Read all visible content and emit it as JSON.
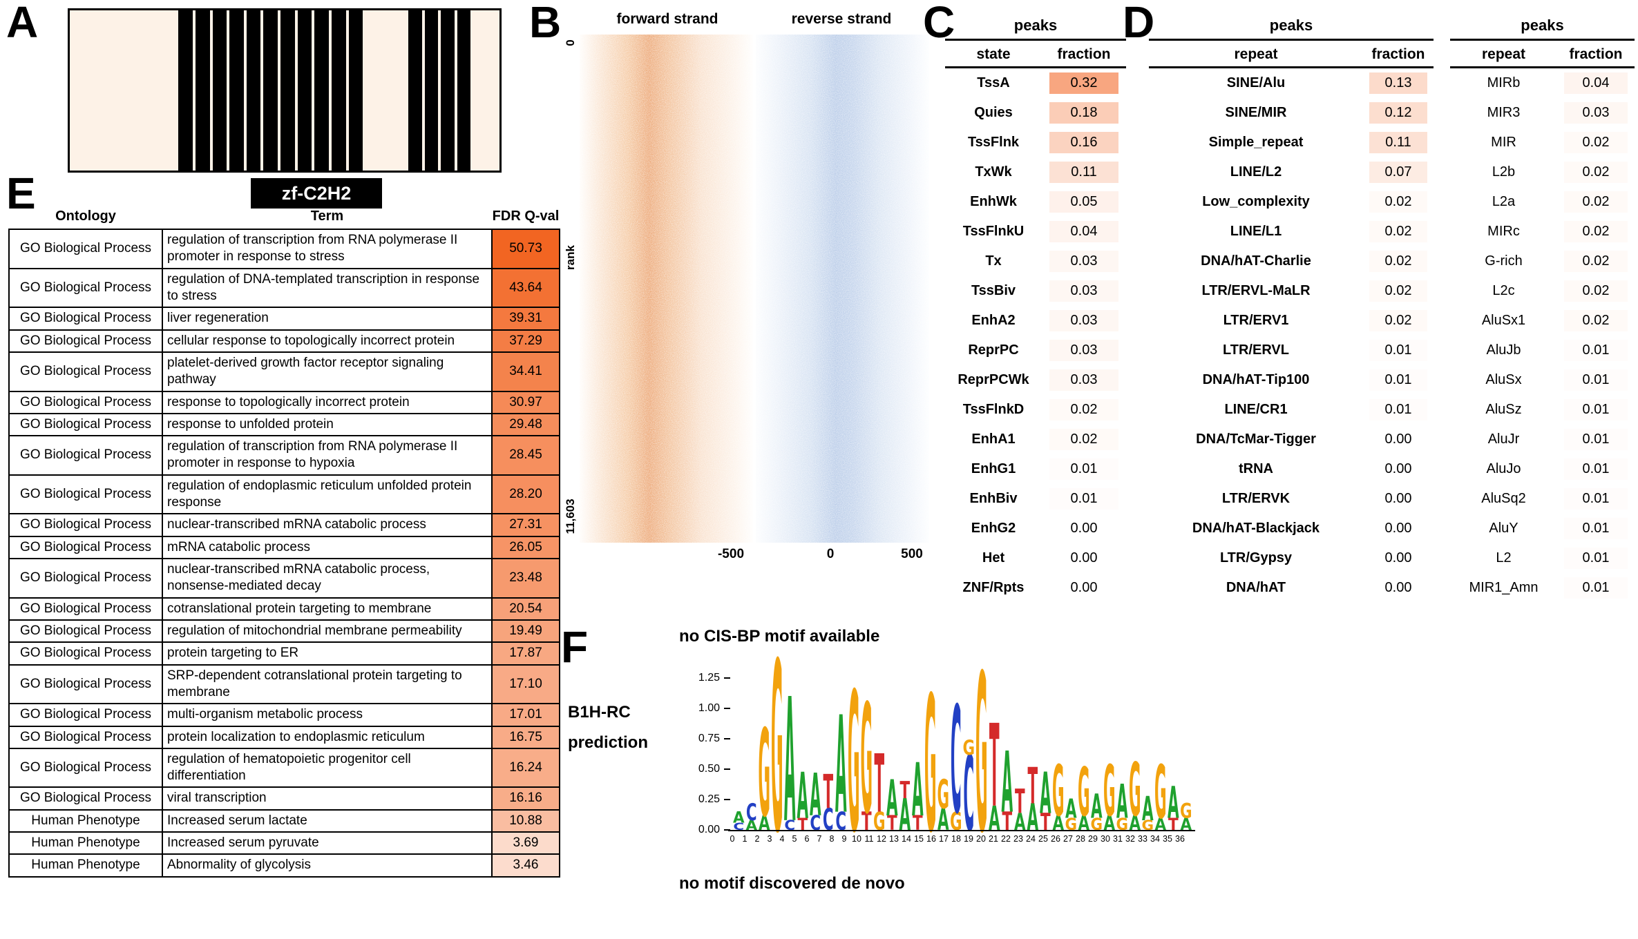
{
  "figure": {
    "panel_labels": {
      "a": "A",
      "b": "B",
      "c": "C",
      "d": "D",
      "e": "E",
      "f": "F"
    }
  },
  "colors": {
    "accent_orange": "#f26522",
    "cream": "#fdf2e7",
    "logo_A": "#1fa12e",
    "logo_C": "#2240c4",
    "logo_G": "#f2a20d",
    "logo_T": "#d42a2a"
  },
  "panel_a": {
    "domain_label": "zf-C2H2",
    "segments": [
      {
        "type": "linker",
        "width_pct": 25.3
      },
      {
        "type": "fingers",
        "width_pct": 42.9,
        "count": 11
      },
      {
        "type": "linker",
        "width_pct": 10.6
      },
      {
        "type": "fingers",
        "width_pct": 14.5,
        "count": 4
      },
      {
        "type": "linker",
        "width_pct": 6.7
      }
    ]
  },
  "panel_b": {
    "forward_label": "forward strand",
    "reverse_label": "reverse strand",
    "rank_top": "0",
    "rank_label": "rank",
    "rank_bottom": "11,603",
    "x_ticks": [
      "-500",
      "0",
      "500"
    ]
  },
  "panel_c": {
    "title": "peaks",
    "col1": "state",
    "col2": "fraction",
    "rows": [
      [
        "TssA",
        "0.32"
      ],
      [
        "Quies",
        "0.18"
      ],
      [
        "TssFlnk",
        "0.16"
      ],
      [
        "TxWk",
        "0.11"
      ],
      [
        "EnhWk",
        "0.05"
      ],
      [
        "TssFlnkU",
        "0.04"
      ],
      [
        "Tx",
        "0.03"
      ],
      [
        "TssBiv",
        "0.03"
      ],
      [
        "EnhA2",
        "0.03"
      ],
      [
        "ReprPC",
        "0.03"
      ],
      [
        "ReprPCWk",
        "0.03"
      ],
      [
        "TssFlnkD",
        "0.02"
      ],
      [
        "EnhA1",
        "0.02"
      ],
      [
        "EnhG1",
        "0.01"
      ],
      [
        "EnhBiv",
        "0.01"
      ],
      [
        "EnhG2",
        "0.00"
      ],
      [
        "Het",
        "0.00"
      ],
      [
        "ZNF/Rpts",
        "0.00"
      ]
    ]
  },
  "panel_d": {
    "table1": {
      "title": "peaks",
      "col1": "repeat",
      "col2": "fraction",
      "rows": [
        [
          "SINE/Alu",
          "0.13"
        ],
        [
          "SINE/MIR",
          "0.12"
        ],
        [
          "Simple_repeat",
          "0.11"
        ],
        [
          "LINE/L2",
          "0.07"
        ],
        [
          "Low_complexity",
          "0.02"
        ],
        [
          "LINE/L1",
          "0.02"
        ],
        [
          "DNA/hAT-Charlie",
          "0.02"
        ],
        [
          "LTR/ERVL-MaLR",
          "0.02"
        ],
        [
          "LTR/ERV1",
          "0.02"
        ],
        [
          "LTR/ERVL",
          "0.01"
        ],
        [
          "DNA/hAT-Tip100",
          "0.01"
        ],
        [
          "LINE/CR1",
          "0.01"
        ],
        [
          "DNA/TcMar-Tigger",
          "0.00"
        ],
        [
          "tRNA",
          "0.00"
        ],
        [
          "LTR/ERVK",
          "0.00"
        ],
        [
          "DNA/hAT-Blackjack",
          "0.00"
        ],
        [
          "LTR/Gypsy",
          "0.00"
        ],
        [
          "DNA/hAT",
          "0.00"
        ]
      ]
    },
    "table2": {
      "title": "peaks",
      "col1": "repeat",
      "col2": "fraction",
      "rows": [
        [
          "MIRb",
          "0.04"
        ],
        [
          "MIR3",
          "0.03"
        ],
        [
          "MIR",
          "0.02"
        ],
        [
          "L2b",
          "0.02"
        ],
        [
          "L2a",
          "0.02"
        ],
        [
          "MIRc",
          "0.02"
        ],
        [
          "G-rich",
          "0.02"
        ],
        [
          "L2c",
          "0.02"
        ],
        [
          "AluSx1",
          "0.02"
        ],
        [
          "AluJb",
          "0.01"
        ],
        [
          "AluSx",
          "0.01"
        ],
        [
          "AluSz",
          "0.01"
        ],
        [
          "AluJr",
          "0.01"
        ],
        [
          "AluJo",
          "0.01"
        ],
        [
          "AluSq2",
          "0.01"
        ],
        [
          "AluY",
          "0.01"
        ],
        [
          "L2",
          "0.01"
        ],
        [
          "MIR1_Amn",
          "0.01"
        ]
      ]
    }
  },
  "panel_e": {
    "headers": [
      "Ontology",
      "Term",
      "FDR Q-val"
    ],
    "qval_max": 50.73,
    "rows": [
      [
        "GO Biological Process",
        "regulation of transcription from RNA polymerase II promoter in response to stress",
        "50.73"
      ],
      [
        "GO Biological Process",
        "regulation of DNA-templated transcription in response to stress",
        "43.64"
      ],
      [
        "GO Biological Process",
        "liver regeneration",
        "39.31"
      ],
      [
        "GO Biological Process",
        "cellular response to topologically incorrect protein",
        "37.29"
      ],
      [
        "GO Biological Process",
        "platelet-derived growth factor receptor signaling pathway",
        "34.41"
      ],
      [
        "GO Biological Process",
        "response to topologically incorrect protein",
        "30.97"
      ],
      [
        "GO Biological Process",
        "response to unfolded protein",
        "29.48"
      ],
      [
        "GO Biological Process",
        "regulation of transcription from RNA polymerase II promoter in response to hypoxia",
        "28.45"
      ],
      [
        "GO Biological Process",
        "regulation of endoplasmic reticulum unfolded protein response",
        "28.20"
      ],
      [
        "GO Biological Process",
        "nuclear-transcribed mRNA catabolic process",
        "27.31"
      ],
      [
        "GO Biological Process",
        "mRNA catabolic process",
        "26.05"
      ],
      [
        "GO Biological Process",
        "nuclear-transcribed mRNA catabolic process, nonsense-mediated decay",
        "23.48"
      ],
      [
        "GO Biological Process",
        "cotranslational protein targeting to membrane",
        "20.54"
      ],
      [
        "GO Biological Process",
        "regulation of mitochondrial membrane permeability",
        "19.49"
      ],
      [
        "GO Biological Process",
        "protein targeting to ER",
        "17.87"
      ],
      [
        "GO Biological Process",
        "SRP-dependent cotranslational protein targeting to membrane",
        "17.10"
      ],
      [
        "GO Biological Process",
        "multi-organism metabolic process",
        "17.01"
      ],
      [
        "GO Biological Process",
        "protein localization to endoplasmic reticulum",
        "16.75"
      ],
      [
        "GO Biological Process",
        "regulation of hematopoietic progenitor cell differentiation",
        "16.24"
      ],
      [
        "GO Biological Process",
        "viral transcription",
        "16.16"
      ],
      [
        "Human Phenotype",
        "Increased serum lactate",
        "10.88"
      ],
      [
        "Human Phenotype",
        "Increased serum pyruvate",
        "3.69"
      ],
      [
        "Human Phenotype",
        "Abnormality of glycolysis",
        "3.46"
      ]
    ]
  },
  "panel_f": {
    "no_cisbp": "no CIS-BP motif available",
    "prediction_line1": "B1H-RC",
    "prediction_line2": "prediction",
    "no_denovo": "no motif discovered de novo",
    "y_ticks": [
      "1.25",
      "1.00",
      "0.75",
      "0.50",
      "0.25",
      "0.00"
    ],
    "x_ticks": [
      "0",
      "1",
      "2",
      "3",
      "4",
      "5",
      "6",
      "7",
      "8",
      "9",
      "10",
      "11",
      "12",
      "13",
      "14",
      "15",
      "16",
      "17",
      "18",
      "19",
      "20",
      "21",
      "22",
      "23",
      "24",
      "25",
      "26",
      "27",
      "28",
      "29",
      "30",
      "31",
      "32",
      "33",
      "34",
      "35",
      "36"
    ]
  },
  "chart_data": [
    {
      "type": "heatmap",
      "panels": [
        "forward strand",
        "reverse strand"
      ],
      "x_ticks": [
        -500,
        0,
        500
      ],
      "x_range": [
        -500,
        500
      ],
      "ylabel": "rank",
      "y_range": [
        0,
        11603
      ],
      "palette": {
        "forward": "orange",
        "reverse": "blue"
      }
    },
    {
      "type": "sequence_logo",
      "title": "B1H-RC prediction",
      "ylim": [
        0,
        1.4
      ],
      "y_ticks": [
        1.25,
        1.0,
        0.75,
        0.5,
        0.25,
        0.0
      ],
      "x_positions": 36,
      "stacks": [
        [
          [
            "C",
            0.06
          ],
          [
            "A",
            0.09
          ]
        ],
        [
          [
            "A",
            0.08
          ],
          [
            "C",
            0.14
          ]
        ],
        [
          [
            "A",
            0.12
          ],
          [
            "G",
            0.72
          ]
        ],
        [
          [
            "G",
            1.4
          ]
        ],
        [
          [
            "C",
            0.08
          ],
          [
            "A",
            1.02
          ]
        ],
        [
          [
            "T",
            0.1
          ],
          [
            "A",
            0.38
          ]
        ],
        [
          [
            "C",
            0.12
          ],
          [
            "A",
            0.35
          ]
        ],
        [
          [
            "C",
            0.18
          ],
          [
            "T",
            0.28
          ]
        ],
        [
          [
            "C",
            0.15
          ],
          [
            "A",
            0.8
          ]
        ],
        [
          [
            "G",
            1.15
          ]
        ],
        [
          [
            "T",
            0.15
          ],
          [
            "G",
            0.9
          ]
        ],
        [
          [
            "G",
            0.15
          ],
          [
            "T",
            0.48
          ]
        ],
        [
          [
            "T",
            0.12
          ],
          [
            "A",
            0.3
          ]
        ],
        [
          [
            "A",
            0.26
          ],
          [
            "T",
            0.14
          ]
        ],
        [
          [
            "T",
            0.12
          ],
          [
            "A",
            0.44
          ]
        ],
        [
          [
            "G",
            1.12
          ]
        ],
        [
          [
            "A",
            0.18
          ],
          [
            "G",
            0.24
          ]
        ],
        [
          [
            "G",
            0.15
          ],
          [
            "C",
            0.88
          ]
        ],
        [
          [
            "C",
            0.62
          ],
          [
            "G",
            0.12
          ]
        ],
        [
          [
            "G",
            1.3
          ]
        ],
        [
          [
            "A",
            0.2
          ],
          [
            "T",
            0.68
          ]
        ],
        [
          [
            "T",
            0.15
          ],
          [
            "A",
            0.5
          ]
        ],
        [
          [
            "A",
            0.14
          ],
          [
            "T",
            0.2
          ]
        ],
        [
          [
            "A",
            0.22
          ],
          [
            "T",
            0.3
          ]
        ],
        [
          [
            "T",
            0.14
          ],
          [
            "A",
            0.34
          ]
        ],
        [
          [
            "A",
            0.12
          ],
          [
            "G",
            0.42
          ]
        ],
        [
          [
            "G",
            0.1
          ],
          [
            "A",
            0.16
          ]
        ],
        [
          [
            "A",
            0.12
          ],
          [
            "G",
            0.4
          ]
        ],
        [
          [
            "G",
            0.1
          ],
          [
            "A",
            0.2
          ]
        ],
        [
          [
            "A",
            0.12
          ],
          [
            "G",
            0.42
          ]
        ],
        [
          [
            "G",
            0.1
          ],
          [
            "A",
            0.28
          ]
        ],
        [
          [
            "A",
            0.12
          ],
          [
            "G",
            0.44
          ]
        ],
        [
          [
            "G",
            0.08
          ],
          [
            "A",
            0.2
          ]
        ],
        [
          [
            "A",
            0.1
          ],
          [
            "G",
            0.44
          ]
        ],
        [
          [
            "T",
            0.1
          ],
          [
            "A",
            0.26
          ]
        ],
        [
          [
            "A",
            0.1
          ],
          [
            "G",
            0.12
          ]
        ]
      ]
    }
  ]
}
